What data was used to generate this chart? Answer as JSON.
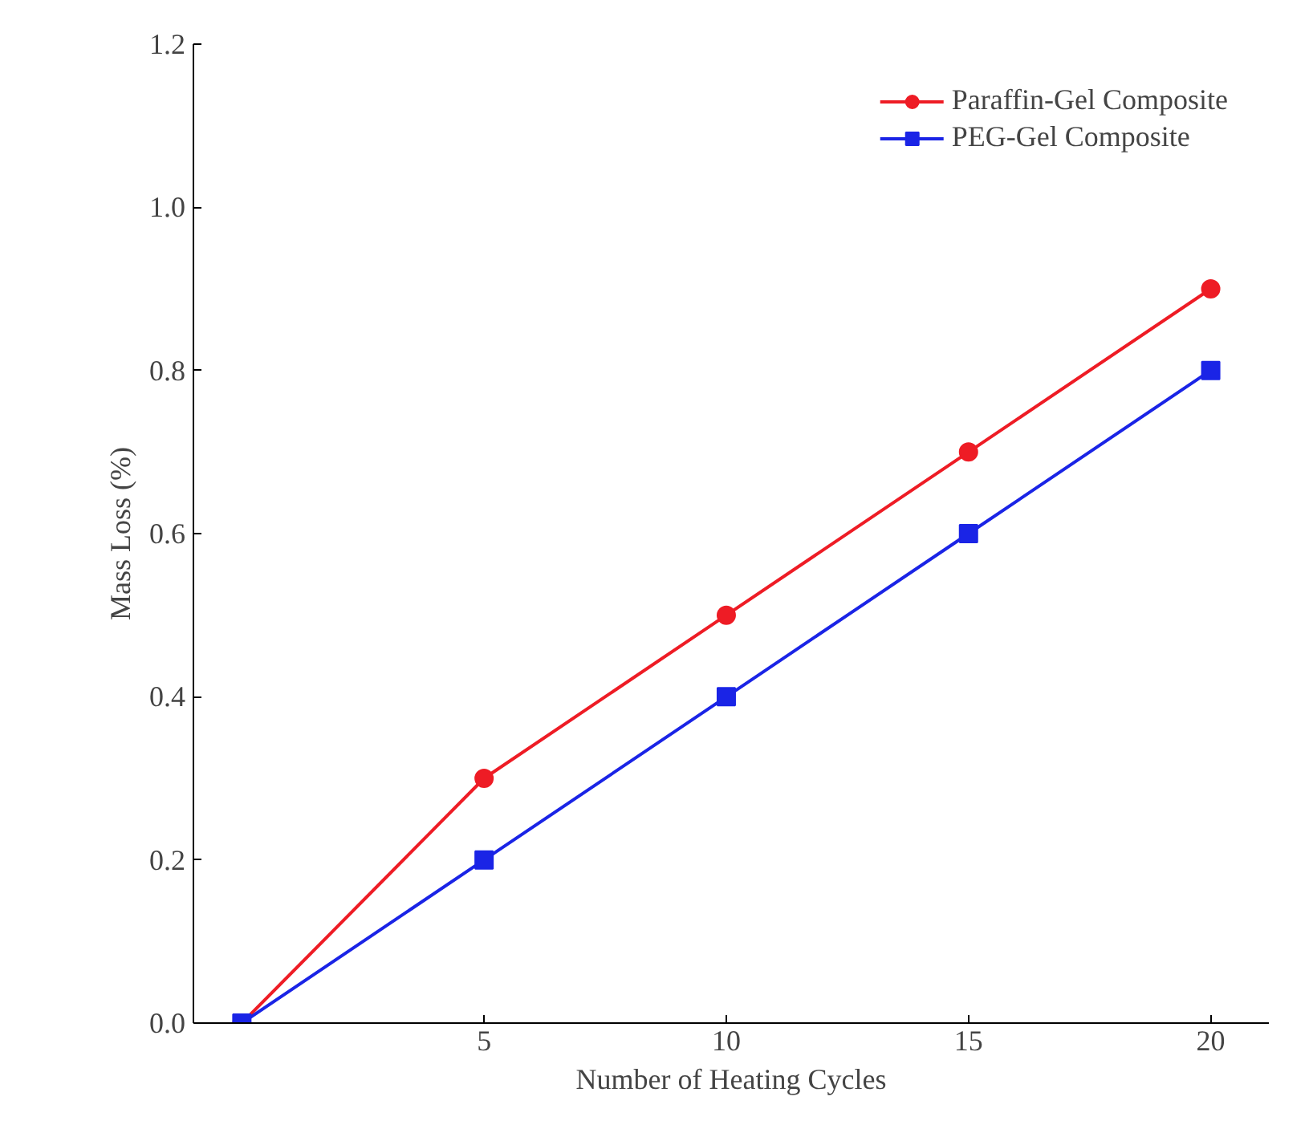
{
  "chart_data": {
    "type": "line",
    "xlabel": "Number of Heating Cycles",
    "ylabel": "Mass Loss (%)",
    "x": [
      0,
      5,
      10,
      15,
      20
    ],
    "series": [
      {
        "name": "Paraffin-Gel Composite",
        "color": "#ee1c25",
        "values": [
          0,
          0.3,
          0.5,
          0.7,
          0.9
        ],
        "marker": "circle"
      },
      {
        "name": "PEG-Gel Composite",
        "color": "#1a24e6",
        "values": [
          0,
          0.2,
          0.4,
          0.6,
          0.8
        ],
        "marker": "square"
      }
    ],
    "xlim": [
      -1,
      21.2
    ],
    "xticks": [
      5,
      10,
      15,
      20
    ],
    "ylim": [
      0,
      1.2
    ],
    "yticks": [
      {
        "value": 0,
        "label": "0.0"
      },
      {
        "value": 0.2,
        "label": "0.2"
      },
      {
        "value": 0.4,
        "label": "0.4"
      },
      {
        "value": 0.6,
        "label": "0.6"
      },
      {
        "value": 0.8,
        "label": "0.8"
      },
      {
        "value": 1.0,
        "label": "1.0"
      },
      {
        "value": 1.2,
        "label": "1.2"
      }
    ],
    "grid": false,
    "legend": "top right",
    "line_style": "solid"
  }
}
